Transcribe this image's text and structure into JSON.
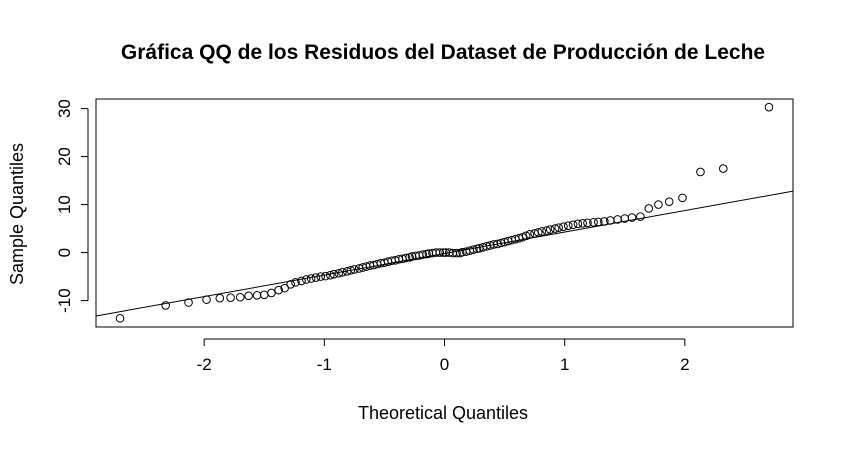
{
  "chart_data": {
    "type": "scatter",
    "title": "Gráfica QQ de los Residuos del Dataset de Producción de Leche",
    "xlabel": "Theoretical Quantiles",
    "ylabel": "Sample Quantiles",
    "xlim": [
      -2.9,
      2.9
    ],
    "ylim": [
      -15.5,
      32
    ],
    "x_ticks": [
      -2,
      -1,
      0,
      1,
      2
    ],
    "x_tick_labels": [
      "-2",
      "-1",
      "0",
      "1",
      "2"
    ],
    "y_ticks": [
      -10,
      0,
      10,
      20,
      30
    ],
    "y_tick_labels": [
      "-10",
      "0",
      "10",
      "20",
      "30"
    ],
    "grid": false,
    "marker": "open-circle",
    "colors": {
      "points": "#000000",
      "line": "#000000",
      "axes": "#000000",
      "background": "#ffffff"
    },
    "reference_line": {
      "x": [
        -2.9,
        2.9
      ],
      "y": [
        -13.2,
        12.8
      ]
    },
    "points": {
      "x": [
        -2.7,
        -2.32,
        -2.13,
        -1.98,
        -1.87,
        -1.78,
        -1.7,
        -1.63,
        -1.56,
        -1.5,
        -1.44,
        -1.38,
        -1.33,
        -1.28,
        -1.24,
        -1.19,
        -1.15,
        -1.11,
        -1.07,
        -1.03,
        -0.99,
        -0.95,
        -0.92,
        -0.88,
        -0.85,
        -0.81,
        -0.78,
        -0.75,
        -0.71,
        -0.68,
        -0.65,
        -0.62,
        -0.59,
        -0.56,
        -0.53,
        -0.5,
        -0.47,
        -0.44,
        -0.41,
        -0.38,
        -0.35,
        -0.32,
        -0.29,
        -0.27,
        -0.24,
        -0.21,
        -0.18,
        -0.15,
        -0.13,
        -0.1,
        -0.07,
        -0.04,
        -0.01,
        0.01,
        0.04,
        0.07,
        0.1,
        0.13,
        0.15,
        0.18,
        0.21,
        0.24,
        0.27,
        0.29,
        0.32,
        0.35,
        0.38,
        0.41,
        0.44,
        0.47,
        0.5,
        0.53,
        0.56,
        0.59,
        0.62,
        0.65,
        0.68,
        0.71,
        0.75,
        0.78,
        0.81,
        0.85,
        0.88,
        0.92,
        0.95,
        0.99,
        1.03,
        1.07,
        1.11,
        1.15,
        1.19,
        1.24,
        1.28,
        1.33,
        1.38,
        1.44,
        1.5,
        1.56,
        1.63,
        1.7,
        1.78,
        1.87,
        1.98,
        2.13,
        2.32,
        2.7
      ],
      "y": [
        -13.7,
        -11.0,
        -10.4,
        -9.8,
        -9.5,
        -9.4,
        -9.3,
        -9.0,
        -8.9,
        -8.8,
        -8.4,
        -7.8,
        -7.4,
        -6.6,
        -6.2,
        -5.9,
        -5.6,
        -5.4,
        -5.2,
        -5.0,
        -4.9,
        -4.7,
        -4.5,
        -4.3,
        -4.1,
        -3.9,
        -3.7,
        -3.5,
        -3.3,
        -3.1,
        -2.9,
        -2.7,
        -2.6,
        -2.4,
        -2.2,
        -2.1,
        -1.9,
        -1.7,
        -1.6,
        -1.4,
        -1.3,
        -1.1,
        -1.0,
        -0.8,
        -0.7,
        -0.6,
        -0.4,
        -0.3,
        -0.2,
        -0.1,
        0.0,
        0.0,
        0.0,
        0.0,
        0.0,
        -0.1,
        -0.1,
        -0.1,
        0.1,
        0.2,
        0.4,
        0.6,
        0.8,
        0.9,
        1.1,
        1.3,
        1.5,
        1.7,
        1.8,
        2.0,
        2.2,
        2.4,
        2.6,
        2.8,
        3.0,
        3.2,
        3.5,
        3.8,
        4.0,
        4.2,
        4.4,
        4.6,
        4.8,
        5.0,
        5.2,
        5.4,
        5.6,
        5.8,
        6.0,
        6.1,
        6.2,
        6.3,
        6.4,
        6.5,
        6.7,
        6.9,
        7.1,
        7.3,
        7.5,
        9.2,
        10.0,
        10.6,
        11.4,
        16.8,
        17.5,
        30.3
      ]
    }
  }
}
